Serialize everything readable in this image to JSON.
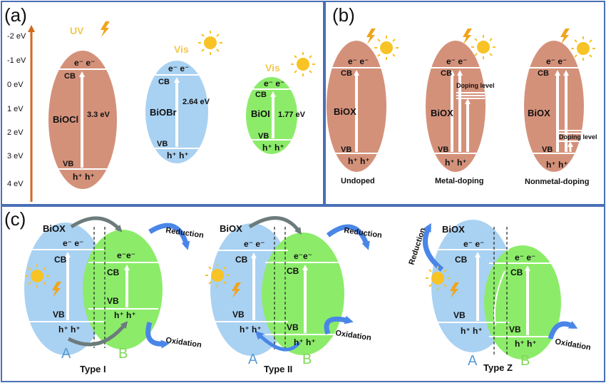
{
  "colors": {
    "border": "#4a6fb5",
    "axis": "#d2691e",
    "orange": "#d4917a",
    "blue": "#a9d1f2",
    "green": "#8cec6a",
    "light_label": "#f2c94c",
    "sun": "#f7c325",
    "bolt": "#f0a41c",
    "arrow": "#4a86e8",
    "gray_arrow": "#6c7b7b",
    "label_A": "#5b9bd5",
    "label_B": "#7ed957"
  },
  "panel_a": {
    "label": "(a)",
    "axis_ticks": [
      "-2 eV",
      "-1 eV",
      "0 eV",
      "1 eV",
      "2 eV",
      "3 eV",
      "4 eV"
    ],
    "materials": [
      {
        "name": "BiOCl",
        "light": "UV",
        "gap": "3.3 eV",
        "electrons": "e⁻ e⁻",
        "holes": "h⁺ h⁺",
        "cb": "CB",
        "vb": "VB"
      },
      {
        "name": "BiOBr",
        "light": "Vis",
        "gap": "2.64 eV",
        "electrons": "e⁻ e⁻",
        "holes": "h⁺ h⁺",
        "cb": "CB",
        "vb": "VB"
      },
      {
        "name": "BiOI",
        "light": "Vis",
        "gap": "1.77 eV",
        "electrons": "e⁻ e⁻",
        "holes": "h⁺ h⁺",
        "cb": "CB",
        "vb": "VB"
      }
    ]
  },
  "panel_b": {
    "label": "(b)",
    "items": [
      {
        "name": "BiOX",
        "caption": "Undoped",
        "electrons": "e⁻ e⁻",
        "holes": "h⁺ h⁺",
        "cb": "CB",
        "vb": "VB"
      },
      {
        "name": "BiOX",
        "caption": "Metal-doping",
        "doping": "Doping level",
        "electrons": "e⁻ e⁻",
        "holes": "h⁺ h⁺",
        "cb": "CB",
        "vb": "VB"
      },
      {
        "name": "BiOX",
        "caption": "Nonmetal-doping",
        "doping": "Doping level",
        "electrons": "e⁻ e⁻",
        "holes": "h⁺ h⁺",
        "cb": "CB",
        "vb": "VB"
      }
    ]
  },
  "panel_c": {
    "label": "(c)",
    "schemes": [
      {
        "title": "BiOX",
        "type": "Type I",
        "reduction": "Reduction",
        "oxidation": "Oxidation",
        "a": "A",
        "b": "B",
        "a_cb": "CB",
        "a_vb": "VB",
        "b_cb": "CB",
        "b_vb": "VB",
        "a_e": "e⁻ e⁻",
        "a_h": "h⁺ h⁺",
        "b_e": "e⁻e⁻",
        "b_h": "h⁺ h⁺"
      },
      {
        "title": "BiOX",
        "type": "Type II",
        "reduction": "Reduction",
        "oxidation": "Oxidation",
        "a": "A",
        "b": "B",
        "a_cb": "CB",
        "a_vb": "VB",
        "b_cb": "CB",
        "b_vb": "VB",
        "a_e": "e⁻ e⁻",
        "a_h": "h⁺ h⁺",
        "b_e": "e⁻e⁻",
        "b_h": "h⁺ h⁺"
      },
      {
        "title": "BiOX",
        "type": "Type Z",
        "reduction": "Reduction",
        "oxidation": "Oxidation",
        "a": "A",
        "b": "B",
        "a_cb": "CB",
        "a_vb": "VB",
        "b_cb": "CB",
        "b_vb": "VB",
        "a_e": "e⁻ e⁻",
        "a_h": "h⁺ h⁺",
        "b_e": "e⁻ e⁻",
        "b_h": "h⁺ h⁺"
      }
    ]
  }
}
